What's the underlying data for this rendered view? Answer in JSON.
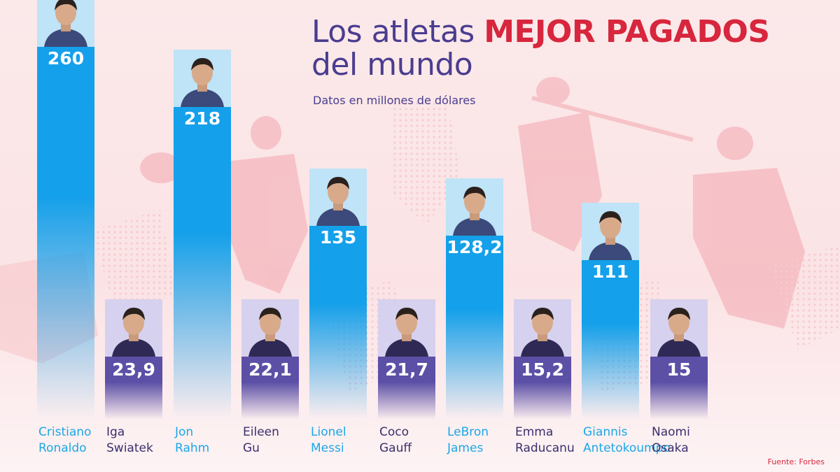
{
  "chart_data": {
    "type": "bar",
    "title_part1": "Los atletas",
    "title_highlight": "MEJOR PAGADOS",
    "title_part2": "del mundo",
    "subtitle": "Datos en millones de dólares",
    "source": "Fuente: Forbes",
    "ylim": [
      0,
      300
    ],
    "colors": {
      "title": "#4a3d8f",
      "highlight": "#d7263d",
      "men_bar_top": "#14a0ea",
      "women_bar_top": "#5b4fa6",
      "men_label": "#1ba7e6",
      "women_label": "#3a2f6e"
    },
    "bars": [
      {
        "first": "Cristiano",
        "last": "Ronaldo",
        "value": 260,
        "value_label": "260",
        "group": "men"
      },
      {
        "first": "Iga",
        "last": "Swiatek",
        "value": 23.9,
        "value_label": "23,9",
        "group": "women"
      },
      {
        "first": "Jon",
        "last": "Rahm",
        "value": 218,
        "value_label": "218",
        "group": "men"
      },
      {
        "first": "Eileen",
        "last": "Gu",
        "value": 22.1,
        "value_label": "22,1",
        "group": "women"
      },
      {
        "first": "Lionel",
        "last": "Messi",
        "value": 135,
        "value_label": "135",
        "group": "men"
      },
      {
        "first": "Coco",
        "last": "Gauff",
        "value": 21.7,
        "value_label": "21,7",
        "group": "women"
      },
      {
        "first": "LeBron",
        "last": "James",
        "value": 128.2,
        "value_label": "128,2",
        "group": "men"
      },
      {
        "first": "Emma",
        "last": "Raducanu",
        "value": 15.2,
        "value_label": "15,2",
        "group": "women"
      },
      {
        "first": "Giannis",
        "last": "Antetokoumpo",
        "value": 111,
        "value_label": "111",
        "group": "men"
      },
      {
        "first": "Naomi",
        "last": "Osaka",
        "value": 15,
        "value_label": "15",
        "group": "women"
      }
    ]
  }
}
